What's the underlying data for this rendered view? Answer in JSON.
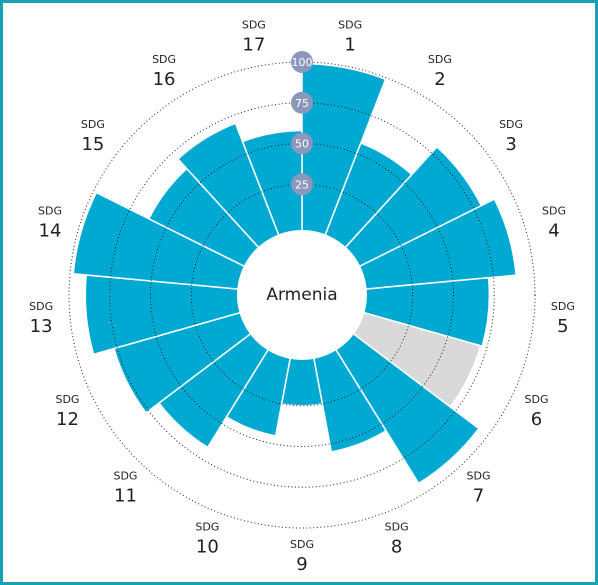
{
  "chart_data": {
    "type": "polar_bar",
    "title": "Armenia",
    "category_label": "SDG",
    "categories": [
      "1",
      "2",
      "3",
      "4",
      "5",
      "6",
      "7",
      "8",
      "9",
      "10",
      "11",
      "12",
      "13",
      "14",
      "15",
      "16",
      "17"
    ],
    "values": [
      99,
      57,
      80,
      89,
      72,
      71,
      93,
      55,
      25,
      45,
      67,
      77,
      90,
      98,
      62,
      70,
      58
    ],
    "colors": [
      "#00a9d1",
      "#00a9d1",
      "#00a9d1",
      "#00a9d1",
      "#00a9d1",
      "#d9d9d9",
      "#00a9d1",
      "#00a9d1",
      "#00a9d1",
      "#00a9d1",
      "#00a9d1",
      "#00a9d1",
      "#00a9d1",
      "#00a9d1",
      "#00a9d1",
      "#00a9d1",
      "#00a9d1"
    ],
    "ylim": [
      0,
      100
    ],
    "yticks": [
      25,
      50,
      75,
      100
    ],
    "grid": true
  }
}
